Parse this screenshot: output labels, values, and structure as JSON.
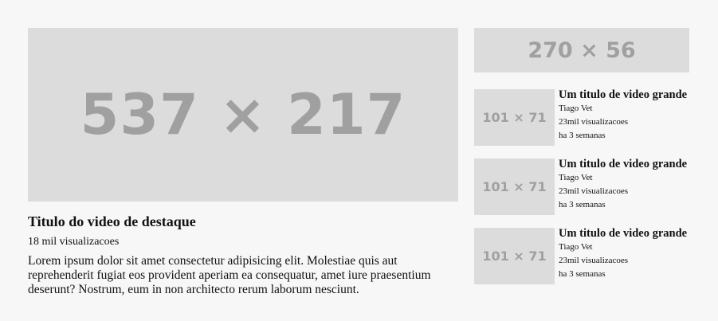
{
  "featured": {
    "thumb_label": "537 × 217",
    "title": "Titulo do video de destaque",
    "views": "18 mil visualizacoes",
    "description": "Lorem ipsum dolor sit amet consectetur adipisicing elit. Molestiae quis aut reprehenderit fugiat eos provident aperiam ea consequatur, amet iure praesentium deserunt? Nostrum, eum in non architecto rerum laborum nesciunt."
  },
  "side_banner": {
    "label": "270 × 56"
  },
  "videos": [
    {
      "thumb_label": "101 × 71",
      "title": "Um titulo de video grande",
      "channel": "Tiago Vet",
      "views": "23mil visualizacoes",
      "age": "ha 3 semanas"
    },
    {
      "thumb_label": "101 × 71",
      "title": "Um titulo de video grande",
      "channel": "Tiago Vet",
      "views": "23mil visualizacoes",
      "age": "ha 3 semanas"
    },
    {
      "thumb_label": "101 × 71",
      "title": "Um titulo de video grande",
      "channel": "Tiago Vet",
      "views": "23mil visualizacoes",
      "age": "ha 3 semanas"
    }
  ],
  "colors": {
    "background": "#f7f7f7",
    "placeholder_bg": "#dcdcdc",
    "placeholder_text": "#a0a0a0"
  }
}
